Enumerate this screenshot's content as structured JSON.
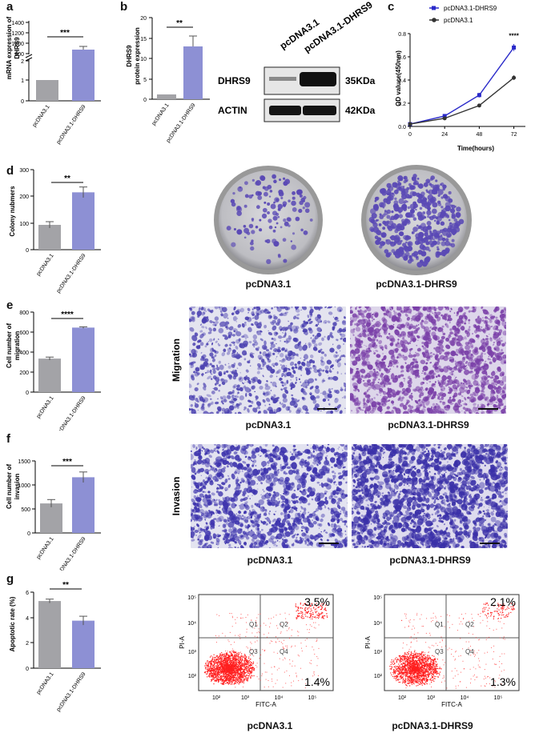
{
  "colors": {
    "control_bar": "#a3a3a7",
    "dhrs9_bar": "#8d90d4",
    "line_dhrs9": "#2929c9",
    "line_control": "#333333",
    "stain": "#5a49b5",
    "flow_dot": "#ff1f1f"
  },
  "panel_labels": [
    "a",
    "b",
    "c",
    "d",
    "e",
    "f",
    "g"
  ],
  "bar_panels": {
    "a": {
      "ylabel": "mRNA expression of DHRS9",
      "categories": [
        "pcDNA3.1",
        "pcDNA3.1-DHRS9"
      ],
      "sig": "***",
      "ticks_low": [
        "0",
        "1",
        "2"
      ],
      "ticks_high": [
        "800",
        "1000",
        "1200",
        "1400"
      ]
    },
    "b": {
      "ylabel": "DHRS9 protein expression",
      "categories": [
        "pcDNA3.1",
        "pcDNA3.1-DHRS9"
      ],
      "sig": "**",
      "ticks": [
        "0",
        "5",
        "10",
        "15",
        "20"
      ]
    },
    "d": {
      "ylabel": "Colony nubmers",
      "categories": [
        "pcDNA3.1",
        "pcDNA3.1-DHRS9"
      ],
      "sig": "**",
      "ticks": [
        "0",
        "100",
        "200",
        "300"
      ]
    },
    "e": {
      "ylabel": "Cell number of migration",
      "categories": [
        "pcDNA3.1",
        "pcDNA3.1-DHRS9"
      ],
      "sig": "****",
      "ticks": [
        "0",
        "200",
        "400",
        "600",
        "800"
      ]
    },
    "f": {
      "ylabel": "Cell number of invasion",
      "categories": [
        "pcDNA3.1",
        "pcDNA3.1-DHRS9"
      ],
      "sig": "***",
      "ticks": [
        "0",
        "500",
        "1000",
        "1500"
      ]
    },
    "g": {
      "ylabel": "Apoptotic rate (%)",
      "categories": [
        "pcDNA3.1",
        "pcDNA3.1-DHRS9"
      ],
      "sig": "**",
      "ticks": [
        "0",
        "2",
        "4",
        "6"
      ]
    }
  },
  "western": {
    "lane_labels": [
      "pcDNA3.1",
      "pcDNA3.1-DHRS9"
    ],
    "rows": [
      {
        "protein": "DHRS9",
        "size": "35KDa"
      },
      {
        "protein": "ACTIN",
        "size": "42KDa"
      }
    ]
  },
  "line_panel": {
    "ylabel": "OD valuce(450nm)",
    "xlabel": "Time(hours)",
    "legend": [
      "pcDNA3.1-DHRS9",
      "pcDNA3.1"
    ],
    "sig": "****",
    "xticks": [
      "0",
      "24",
      "48",
      "72"
    ],
    "yticks": [
      "0.0",
      "0.2",
      "0.4",
      "0.6",
      "0.8"
    ]
  },
  "image_captions": {
    "colony": [
      "pcDNA3.1",
      "pcDNA3.1-DHRS9"
    ],
    "migration": [
      "pcDNA3.1",
      "pcDNA3.1-DHRS9"
    ],
    "invasion": [
      "pcDNA3.1",
      "pcDNA3.1-DHRS9"
    ],
    "flow": [
      "pcDNA3.1",
      "pcDNA3.1-DHRS9"
    ]
  },
  "row_labels": {
    "migration": "Migration",
    "invasion": "Invasion"
  },
  "flow": {
    "xlabel": "FITC-A",
    "ylabel": "PI-A",
    "quadrants": [
      "Q1",
      "Q2",
      "Q3",
      "Q4"
    ],
    "xticks": [
      "10²",
      "10³",
      "10⁴",
      "10⁵"
    ],
    "yticks": [
      "10²",
      "10³",
      "10⁴",
      "10⁵"
    ],
    "plots": [
      {
        "upper_right": "3.5%",
        "lower_right": "1.4%"
      },
      {
        "upper_right": "2.1%",
        "lower_right": "1.3%"
      }
    ]
  },
  "chart_data": [
    {
      "panel": "a",
      "type": "bar",
      "categories": [
        "pcDNA3.1",
        "pcDNA3.1-DHRS9"
      ],
      "values": [
        1,
        900
      ],
      "errors": [
        0,
        60
      ],
      "ylabel": "mRNA expression of DHRS9",
      "axis_break": true
    },
    {
      "panel": "b",
      "type": "bar",
      "categories": [
        "pcDNA3.1",
        "pcDNA3.1-DHRS9"
      ],
      "values": [
        1,
        12.9
      ],
      "errors": [
        0,
        2.6
      ],
      "ylabel": "DHRS9 protein expression",
      "ylim": [
        0,
        20
      ]
    },
    {
      "panel": "c",
      "type": "line",
      "x": [
        0,
        24,
        48,
        72
      ],
      "series": [
        {
          "name": "pcDNA3.1-DHRS9",
          "values": [
            0.02,
            0.09,
            0.27,
            0.68
          ],
          "errors": [
            0.005,
            0.01,
            0.02,
            0.03
          ]
        },
        {
          "name": "pcDNA3.1",
          "values": [
            0.02,
            0.07,
            0.18,
            0.42
          ],
          "errors": [
            0.005,
            0.01,
            0.01,
            0.02
          ]
        }
      ],
      "xlabel": "Time(hours)",
      "ylabel": "OD valuce(450nm)",
      "ylim": [
        0,
        0.8
      ],
      "xlim": [
        0,
        80
      ]
    },
    {
      "panel": "d",
      "type": "bar",
      "categories": [
        "pcDNA3.1",
        "pcDNA3.1-DHRS9"
      ],
      "values": [
        93,
        215
      ],
      "errors": [
        12,
        20
      ],
      "ylabel": "Colony nubmers",
      "ylim": [
        0,
        300
      ]
    },
    {
      "panel": "e",
      "type": "bar",
      "categories": [
        "pcDNA3.1",
        "pcDNA3.1-DHRS9"
      ],
      "values": [
        335,
        645
      ],
      "errors": [
        15,
        8
      ],
      "ylabel": "Cell number of migration",
      "ylim": [
        0,
        800
      ]
    },
    {
      "panel": "f",
      "type": "bar",
      "categories": [
        "pcDNA3.1",
        "pcDNA3.1-DHRS9"
      ],
      "values": [
        615,
        1160
      ],
      "errors": [
        80,
        110
      ],
      "ylabel": "Cell number of invasion",
      "ylim": [
        0,
        1500
      ]
    },
    {
      "panel": "g",
      "type": "bar",
      "categories": [
        "pcDNA3.1",
        "pcDNA3.1-DHRS9"
      ],
      "values": [
        5.3,
        3.75
      ],
      "errors": [
        0.15,
        0.35
      ],
      "ylabel": "Apoptotic rate (%)",
      "ylim": [
        0,
        6
      ]
    }
  ]
}
